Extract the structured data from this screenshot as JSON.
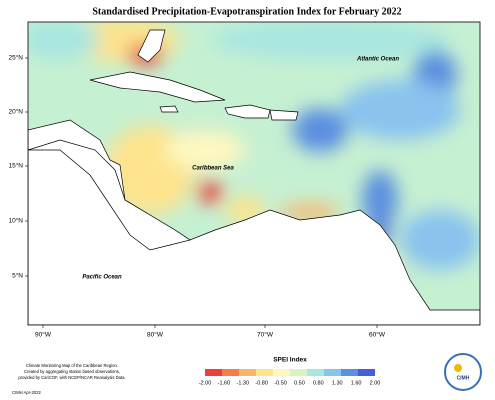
{
  "title": "Standardised Precipitation-Evapotranspiration Index for February 2022",
  "map": {
    "lon_labels": [
      "90°W",
      "80°W",
      "70°W",
      "60°W"
    ],
    "lat_labels": [
      "25°N",
      "20°N",
      "15°N",
      "10°N",
      "5°N"
    ],
    "places": [
      "Atlantic Ocean",
      "Caribbean Sea",
      "Pacific Ocean"
    ]
  },
  "legend": {
    "title": "SPEI Index",
    "ticks": [
      {
        "value": -2,
        "label": "-2.00"
      },
      {
        "value": -1.6,
        "label": "-1.60"
      },
      {
        "value": -1.3,
        "label": "-1.30"
      },
      {
        "value": -0.8,
        "label": "-0.80"
      },
      {
        "value": -0.5,
        "label": "-0.50"
      },
      {
        "value": 0.5,
        "label": "0.50"
      },
      {
        "value": 0.8,
        "label": "0.80"
      },
      {
        "value": 1.3,
        "label": "1.30"
      },
      {
        "value": 1.6,
        "label": "1.60"
      },
      {
        "value": 2,
        "label": "2.00"
      }
    ],
    "colors": [
      "#e8413c",
      "#f47d4a",
      "#f9b66a",
      "#fde38d",
      "#fef7c0",
      "#d9f3c5",
      "#a8e6e0",
      "#89c3ee",
      "#5b8fe0",
      "#4a5cd6"
    ]
  },
  "footnote": {
    "lines": [
      "Climate Monitoring Map of the Caribbean Region.",
      "Created by aggregating station based observations,",
      "provided by CariCOF, with NCEP/NCAR Reanalysis Data."
    ],
    "credit": "CIMH Apr-2022"
  },
  "logo": "CIMH"
}
